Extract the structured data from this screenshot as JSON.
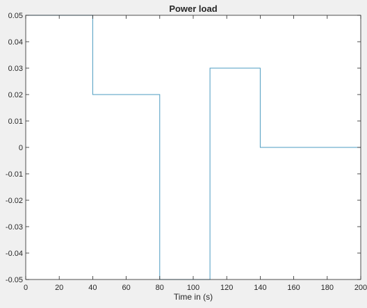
{
  "colors": {
    "figure_bg": "#f0f0f0",
    "axes_bg": "#ffffff",
    "axis": "#262626",
    "series": "#4b9bc0"
  },
  "chart_data": {
    "type": "line",
    "title": "Power load",
    "xlabel": "Time in (s)",
    "ylabel": "",
    "xlim": [
      0,
      200
    ],
    "ylim": [
      -0.05,
      0.05
    ],
    "grid": false,
    "legend": "none",
    "x_ticks": [
      0,
      20,
      40,
      60,
      80,
      100,
      120,
      140,
      160,
      180,
      200
    ],
    "x_tick_labels": [
      "0",
      "20",
      "40",
      "60",
      "80",
      "100",
      "120",
      "140",
      "160",
      "180",
      "200"
    ],
    "y_ticks": [
      -0.05,
      -0.04,
      -0.03,
      -0.02,
      -0.01,
      0,
      0.01,
      0.02,
      0.03,
      0.04,
      0.05
    ],
    "y_tick_labels": [
      "-0.05",
      "-0.04",
      "-0.03",
      "-0.02",
      "-0.01",
      "0",
      "0.01",
      "0.02",
      "0.03",
      "0.04",
      "0.05"
    ],
    "series": [
      {
        "style": "step",
        "x": [
          0,
          40,
          40,
          80,
          80,
          110,
          110,
          140,
          140,
          200
        ],
        "y": [
          0.05,
          0.05,
          0.02,
          0.02,
          -0.05,
          -0.05,
          0.03,
          0.03,
          0,
          0
        ]
      }
    ]
  }
}
